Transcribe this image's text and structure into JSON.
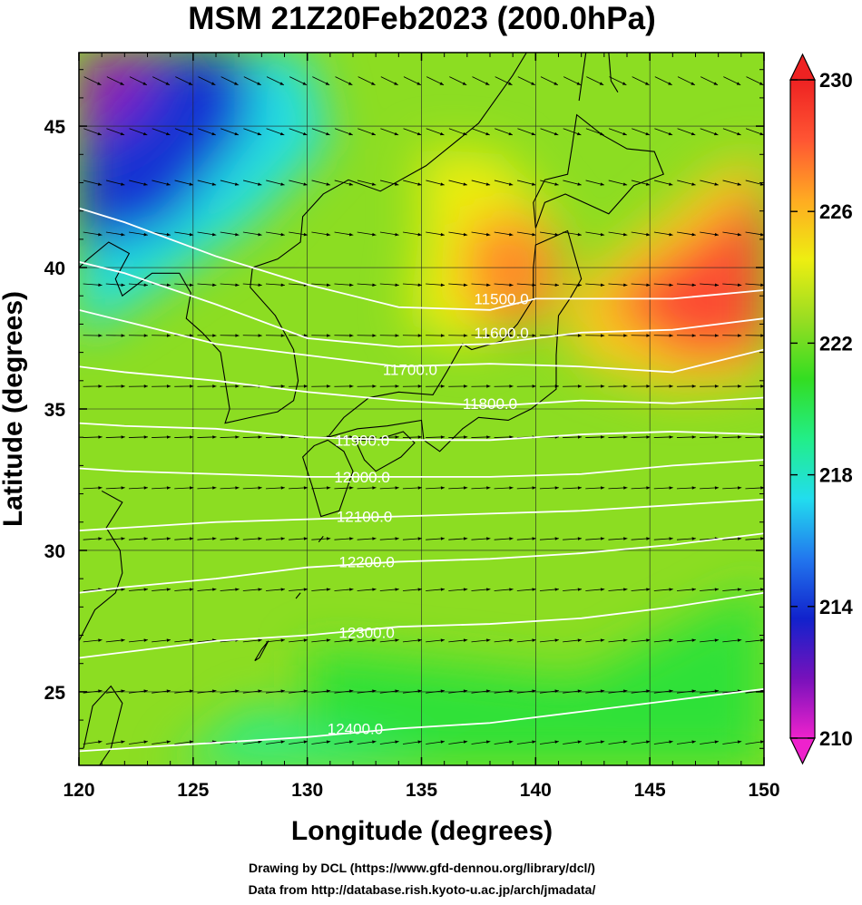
{
  "title": "MSM 21Z20Feb2023 (200.0hPa)",
  "credits": [
    "Drawing by DCL (https://www.gfd-dennou.org/library/dcl/)",
    "Data from http://database.rish.kyoto-u.ac.jp/arch/jmadata/"
  ],
  "chart_data": {
    "type": "heatmap",
    "title": "MSM 21Z20Feb2023 (200.0hPa)",
    "xlabel": "Longitude (degrees)",
    "ylabel": "Latitude  (degrees)",
    "xlim": [
      120,
      150
    ],
    "ylim": [
      22.4,
      47.6
    ],
    "x_ticks": [
      120,
      125,
      130,
      135,
      140,
      145,
      150
    ],
    "y_ticks": [
      25,
      30,
      35,
      40,
      45
    ],
    "colorbar": {
      "range": [
        210,
        230
      ],
      "ticks": [
        210,
        214,
        218,
        222,
        226,
        230
      ],
      "colors": [
        "#ee22cc",
        "#7711bb",
        "#1122cc",
        "#2277ee",
        "#22ddee",
        "#22ee88",
        "#33dd22",
        "#99dd22",
        "#eeee11",
        "#ffaa22",
        "#ff5533",
        "#ee2222"
      ]
    },
    "shaded_field": {
      "fill_regions": [
        {
          "value": 217.5,
          "points": [
            [
              120,
              47.6
            ],
            [
              130,
              47.6
            ],
            [
              131,
              44.5
            ],
            [
              127.5,
              41.5
            ],
            [
              122,
              38.5
            ],
            [
              120,
              37.5
            ]
          ]
        },
        {
          "value": 214,
          "points": [
            [
              120,
              47.6
            ],
            [
              127.5,
              47.6
            ],
            [
              127.5,
              45
            ],
            [
              124,
              41.5
            ],
            [
              120,
              40.5
            ]
          ]
        },
        {
          "value": 211.5,
          "points": [
            [
              120,
              47.6
            ],
            [
              123.5,
              47.6
            ],
            [
              122.5,
              45.5
            ],
            [
              120,
              44.5
            ]
          ]
        },
        {
          "value": 224.5,
          "points": [
            [
              135,
              44.2
            ],
            [
              138.5,
              44
            ],
            [
              141,
              41.5
            ],
            [
              140,
              38.5
            ],
            [
              137,
              37.2
            ],
            [
              134.5,
              38
            ],
            [
              135,
              41
            ]
          ]
        },
        {
          "value": 227,
          "points": [
            [
              137,
              41.5
            ],
            [
              139.5,
              42
            ],
            [
              141.2,
              40.8
            ],
            [
              140.6,
              38.2
            ],
            [
              138.2,
              37.8
            ],
            [
              136.8,
              39
            ]
          ]
        },
        {
          "value": 225.5,
          "points": [
            [
              141,
              39
            ],
            [
              145,
              41.5
            ],
            [
              148,
              43.5
            ],
            [
              150,
              44
            ],
            [
              150,
              36
            ],
            [
              146,
              35.6
            ],
            [
              142,
              36.6
            ]
          ]
        },
        {
          "value": 228.5,
          "points": [
            [
              143,
              38.8
            ],
            [
              147,
              41
            ],
            [
              150,
              43
            ],
            [
              150,
              37
            ],
            [
              146.5,
              36.8
            ]
          ]
        },
        {
          "value": 220.5,
          "points": [
            [
              130,
              26.5
            ],
            [
              142,
              25.5
            ],
            [
              150,
              28.8
            ],
            [
              150,
              22.4
            ],
            [
              130,
              22.4
            ]
          ]
        },
        {
          "value": 219,
          "points": [
            [
              130,
              23.5
            ],
            [
              136,
              22.4
            ],
            [
              124,
              22.4
            ],
            [
              128,
              24.5
            ]
          ]
        }
      ]
    },
    "height_contours": [
      {
        "level": "11500.0",
        "points": [
          [
            150,
            39.2
          ],
          [
            146,
            38.9
          ],
          [
            142,
            38.9
          ],
          [
            140,
            38.9
          ],
          [
            138,
            38.5
          ],
          [
            134,
            38.6
          ],
          [
            130,
            39.4
          ],
          [
            126,
            40.4
          ],
          [
            122,
            41.6
          ],
          [
            120,
            42.1
          ]
        ],
        "label_at": [
          138.5,
          38.9
        ]
      },
      {
        "level": "11600.0",
        "points": [
          [
            150,
            38.2
          ],
          [
            146,
            37.8
          ],
          [
            142,
            37.7
          ],
          [
            138,
            37.3
          ],
          [
            134,
            37.2
          ],
          [
            130,
            37.5
          ],
          [
            126,
            38.7
          ],
          [
            122,
            39.8
          ],
          [
            120,
            40.2
          ]
        ],
        "label_at": [
          138.5,
          37.7
        ]
      },
      {
        "level": "11700.0",
        "points": [
          [
            150,
            37.1
          ],
          [
            146,
            36.3
          ],
          [
            142,
            36.5
          ],
          [
            138,
            36.6
          ],
          [
            134,
            36.5
          ],
          [
            130,
            36.9
          ],
          [
            126,
            37.3
          ],
          [
            122,
            38.1
          ],
          [
            120,
            38.5
          ]
        ],
        "label_at": [
          134.5,
          36.4
        ]
      },
      {
        "level": "11800.0",
        "points": [
          [
            150,
            35.4
          ],
          [
            146,
            35.2
          ],
          [
            142,
            35.3
          ],
          [
            138,
            35.1
          ],
          [
            134,
            35.3
          ],
          [
            130,
            35.6
          ],
          [
            126,
            36.0
          ],
          [
            122,
            36.3
          ],
          [
            120,
            36.5
          ]
        ],
        "label_at": [
          138.0,
          35.2
        ]
      },
      {
        "level": "11900.0",
        "points": [
          [
            150,
            34.1
          ],
          [
            146,
            34.2
          ],
          [
            142,
            34.1
          ],
          [
            138,
            33.9
          ],
          [
            134,
            33.9
          ],
          [
            130,
            34.0
          ],
          [
            126,
            34.3
          ],
          [
            122,
            34.4
          ],
          [
            120,
            34.5
          ]
        ],
        "label_at": [
          132.4,
          33.9
        ]
      },
      {
        "level": "12000.0",
        "points": [
          [
            150,
            33.2
          ],
          [
            146,
            33.0
          ],
          [
            142,
            32.7
          ],
          [
            138,
            32.6
          ],
          [
            134,
            32.6
          ],
          [
            130,
            32.6
          ],
          [
            126,
            32.7
          ],
          [
            122,
            32.8
          ],
          [
            120,
            32.9
          ]
        ],
        "label_at": [
          132.4,
          32.6
        ]
      },
      {
        "level": "12100.0",
        "points": [
          [
            150,
            31.8
          ],
          [
            146,
            31.6
          ],
          [
            142,
            31.4
          ],
          [
            138,
            31.3
          ],
          [
            134,
            31.2
          ],
          [
            130,
            31.1
          ],
          [
            126,
            31.0
          ],
          [
            122,
            30.8
          ],
          [
            120,
            30.7
          ]
        ],
        "label_at": [
          132.5,
          31.2
        ]
      },
      {
        "level": "12200.0",
        "points": [
          [
            150,
            30.6
          ],
          [
            146,
            30.2
          ],
          [
            142,
            29.9
          ],
          [
            138,
            29.7
          ],
          [
            134,
            29.6
          ],
          [
            130,
            29.4
          ],
          [
            126,
            29.0
          ],
          [
            122,
            28.7
          ],
          [
            120,
            28.5
          ]
        ],
        "label_at": [
          132.6,
          29.6
        ]
      },
      {
        "level": "12300.0",
        "points": [
          [
            150,
            28.5
          ],
          [
            146,
            28.0
          ],
          [
            142,
            27.6
          ],
          [
            138,
            27.4
          ],
          [
            134,
            27.3
          ],
          [
            130,
            27.0
          ],
          [
            126,
            26.8
          ],
          [
            122,
            26.4
          ],
          [
            120,
            26.2
          ]
        ],
        "label_at": [
          132.6,
          27.1
        ]
      },
      {
        "level": "12400.0",
        "points": [
          [
            150,
            25.1
          ],
          [
            146,
            24.7
          ],
          [
            142,
            24.3
          ],
          [
            138,
            23.9
          ],
          [
            134,
            23.7
          ],
          [
            130,
            23.4
          ],
          [
            126,
            23.2
          ],
          [
            122,
            23.0
          ],
          [
            120,
            22.9
          ]
        ],
        "label_at": [
          132.1,
          23.7
        ]
      }
    ],
    "coastlines": [
      [
        [
          130.9,
          33.9
        ],
        [
          131.6,
          33.5
        ],
        [
          132.0,
          32.8
        ],
        [
          131.4,
          31.4
        ],
        [
          130.6,
          31.2
        ],
        [
          130.2,
          32.3
        ],
        [
          129.8,
          33.3
        ],
        [
          130.3,
          33.7
        ],
        [
          130.9,
          33.9
        ]
      ],
      [
        [
          132.1,
          33.9
        ],
        [
          133.0,
          33.9
        ],
        [
          134.2,
          34.2
        ],
        [
          134.7,
          33.8
        ],
        [
          134.1,
          33.3
        ],
        [
          133.0,
          32.8
        ],
        [
          132.5,
          33.2
        ],
        [
          132.1,
          33.9
        ]
      ],
      [
        [
          130.9,
          34.0
        ],
        [
          132.2,
          34.3
        ],
        [
          133.5,
          34.4
        ],
        [
          135.0,
          34.6
        ],
        [
          135.1,
          33.9
        ],
        [
          135.8,
          33.5
        ],
        [
          136.8,
          34.3
        ],
        [
          137.5,
          34.7
        ],
        [
          138.8,
          34.6
        ],
        [
          139.8,
          35.0
        ],
        [
          140.9,
          35.7
        ],
        [
          140.9,
          36.9
        ],
        [
          141.0,
          38.3
        ],
        [
          141.5,
          38.9
        ],
        [
          142.0,
          39.6
        ],
        [
          141.4,
          41.3
        ],
        [
          140.0,
          40.8
        ],
        [
          139.9,
          40.0
        ],
        [
          139.9,
          38.9
        ],
        [
          139.2,
          38.0
        ],
        [
          138.5,
          37.4
        ],
        [
          137.2,
          37.1
        ],
        [
          136.8,
          37.3
        ],
        [
          136.1,
          36.3
        ],
        [
          135.5,
          35.5
        ],
        [
          134.0,
          35.6
        ],
        [
          132.7,
          35.4
        ],
        [
          131.6,
          34.7
        ],
        [
          130.9,
          34.0
        ]
      ],
      [
        [
          140.0,
          41.4
        ],
        [
          140.4,
          42.3
        ],
        [
          141.3,
          42.6
        ],
        [
          143.2,
          41.9
        ],
        [
          144.3,
          42.9
        ],
        [
          145.6,
          43.3
        ],
        [
          145.2,
          44.1
        ],
        [
          144.0,
          44.2
        ],
        [
          142.9,
          44.7
        ],
        [
          141.8,
          45.4
        ],
        [
          141.6,
          44.3
        ],
        [
          141.4,
          43.3
        ],
        [
          140.4,
          43.1
        ],
        [
          139.9,
          42.3
        ],
        [
          140.0,
          41.4
        ]
      ],
      [
        [
          141.9,
          45.9
        ],
        [
          142.2,
          47.6
        ]
      ],
      [
        [
          143.2,
          47.6
        ],
        [
          143.3,
          46.6
        ],
        [
          143.6,
          46.2
        ]
      ],
      [
        [
          126.2,
          37.0
        ],
        [
          126.6,
          35.0
        ],
        [
          126.4,
          34.5
        ],
        [
          127.5,
          34.7
        ],
        [
          128.7,
          34.9
        ],
        [
          129.4,
          35.3
        ],
        [
          129.6,
          36.0
        ],
        [
          129.4,
          37.1
        ],
        [
          128.6,
          38.3
        ],
        [
          127.5,
          39.3
        ],
        [
          127.6,
          40.0
        ],
        [
          128.7,
          40.3
        ],
        [
          129.7,
          40.9
        ],
        [
          129.8,
          41.8
        ],
        [
          130.7,
          42.6
        ],
        [
          131.8,
          43.1
        ],
        [
          133.2,
          42.7
        ],
        [
          135.2,
          43.6
        ],
        [
          137.5,
          45.1
        ],
        [
          139.0,
          46.8
        ],
        [
          139.6,
          47.6
        ]
      ],
      [
        [
          126.2,
          37.0
        ],
        [
          125.4,
          37.7
        ],
        [
          124.7,
          38.2
        ],
        [
          124.9,
          39.1
        ],
        [
          124.4,
          39.8
        ],
        [
          123.2,
          39.8
        ],
        [
          121.9,
          39.0
        ],
        [
          121.6,
          39.6
        ],
        [
          122.2,
          40.5
        ],
        [
          121.3,
          40.9
        ],
        [
          120.4,
          40.3
        ],
        [
          120.0,
          40.0
        ]
      ],
      [
        [
          121.0,
          32.1
        ],
        [
          121.9,
          31.7
        ],
        [
          121.2,
          30.8
        ],
        [
          121.8,
          30.0
        ],
        [
          121.9,
          29.2
        ],
        [
          121.6,
          28.5
        ],
        [
          120.7,
          27.9
        ],
        [
          120.0,
          26.8
        ]
      ],
      [
        [
          120.2,
          23.0
        ],
        [
          120.6,
          24.5
        ],
        [
          121.4,
          25.2
        ],
        [
          121.9,
          24.6
        ],
        [
          121.4,
          23.0
        ],
        [
          120.9,
          22.4
        ]
      ],
      [
        [
          127.7,
          26.1
        ],
        [
          128.0,
          26.5
        ],
        [
          128.3,
          26.8
        ],
        [
          127.9,
          26.2
        ],
        [
          127.7,
          26.1
        ]
      ],
      [
        [
          129.5,
          28.3
        ],
        [
          129.7,
          28.5
        ]
      ],
      [
        [
          130.5,
          30.3
        ],
        [
          130.7,
          30.5
        ]
      ]
    ],
    "wind_field": {
      "rows_lat": [
        46.6,
        44.8,
        43.0,
        41.2,
        39.4,
        37.6,
        35.8,
        34.0,
        32.2,
        30.4,
        28.6,
        26.8,
        25.0,
        23.2
      ],
      "direction_deg": [
        -26,
        -20,
        -14,
        -9,
        -4,
        -1,
        1,
        2,
        3,
        4,
        5,
        6,
        7,
        8
      ]
    }
  }
}
